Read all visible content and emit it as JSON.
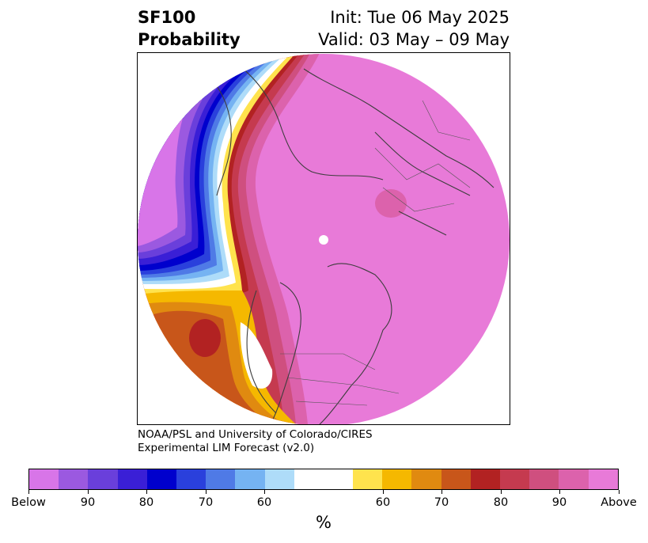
{
  "title": {
    "left_line1": "SF100",
    "left_line2": "Probability",
    "right_line1": "Init: Tue 06 May 2025",
    "right_line2": "Valid: 03 May – 09 May"
  },
  "credit": {
    "line1": "NOAA/PSL and University of Colorado/CIRES",
    "line2": "Experimental LIM Forecast (v2.0)"
  },
  "colorbar": {
    "colors": [
      "#d875e8",
      "#9b59e0",
      "#6a3fdb",
      "#3a1fd6",
      "#0000cd",
      "#2a40dc",
      "#4f7ae6",
      "#75b3f2",
      "#aedcf9",
      "#ffffff",
      "#ffffff",
      "#ffe34d",
      "#f5b800",
      "#e08a10",
      "#c8561a",
      "#b22222",
      "#c53a4f",
      "#cf4f7f",
      "#dc62ac",
      "#e87ad8"
    ],
    "tick_labels": [
      "Below",
      "90",
      "80",
      "70",
      "60",
      "60",
      "70",
      "80",
      "90",
      "Above"
    ],
    "unit": "%"
  },
  "map": {
    "fill_colors": {
      "background": "#e87ad8",
      "strong_below": "#d875e8",
      "below_90": "#9b59e0",
      "below_80": "#6a3fdb",
      "below_75": "#3a1fd6",
      "below_70": "#0000cd",
      "below_65": "#2a40dc",
      "below_60": "#4f7ae6",
      "below_55": "#75b3f2",
      "near_white": "#aedcf9",
      "above_55": "#ffe34d",
      "above_60": "#f5b800",
      "above_65": "#e08a10",
      "above_70": "#c8561a",
      "above_80": "#b22222",
      "above_85": "#c53a4f",
      "above_90": "#cf4f7f",
      "above_95": "#dc62ac"
    }
  }
}
